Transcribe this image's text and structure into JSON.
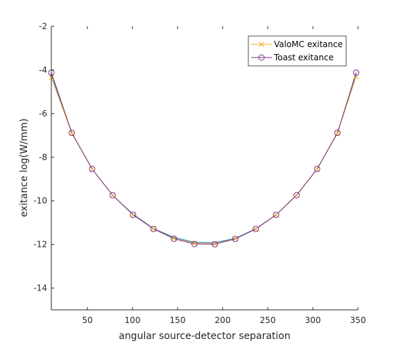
{
  "chart_data": {
    "type": "line",
    "title": "",
    "xlabel": "angular source-detector separation",
    "ylabel": "exitance log(W/mm)",
    "xlim": [
      10,
      350
    ],
    "ylim": [
      -15,
      -2
    ],
    "xticks": [
      50,
      100,
      150,
      200,
      250,
      300,
      350
    ],
    "yticks": [
      -14,
      -12,
      -10,
      -8,
      -6,
      -4,
      -2
    ],
    "grid": false,
    "legend_position": "top-right",
    "x": [
      10,
      32.7,
      55.3,
      78,
      100.7,
      123.3,
      146,
      168.7,
      191.3,
      214,
      236.7,
      259.3,
      282,
      304.7,
      327.3,
      348
    ],
    "series": [
      {
        "name": "ValoMC exitance",
        "color": "#EDB120",
        "marker": "x",
        "values": [
          -4.35,
          -6.9,
          -8.55,
          -9.75,
          -10.65,
          -11.28,
          -11.72,
          -11.95,
          -11.97,
          -11.74,
          -11.3,
          -10.65,
          -9.75,
          -8.55,
          -6.9,
          -4.3
        ]
      },
      {
        "name": "Toast exitance",
        "color": "#7E2F8E",
        "marker": "o",
        "values": [
          -4.12,
          -6.88,
          -8.54,
          -9.74,
          -10.64,
          -11.29,
          -11.74,
          -11.98,
          -11.99,
          -11.75,
          -11.29,
          -10.64,
          -9.74,
          -8.54,
          -6.88,
          -4.12
        ]
      }
    ],
    "extra_line": {
      "color": "#0072BD",
      "values": [
        -4.2,
        -6.9,
        -8.55,
        -9.75,
        -10.62,
        -11.27,
        -11.68,
        -11.9,
        -11.92,
        -11.72,
        -11.28,
        -10.64,
        -9.74,
        -8.55,
        -6.9,
        -4.2
      ]
    }
  }
}
